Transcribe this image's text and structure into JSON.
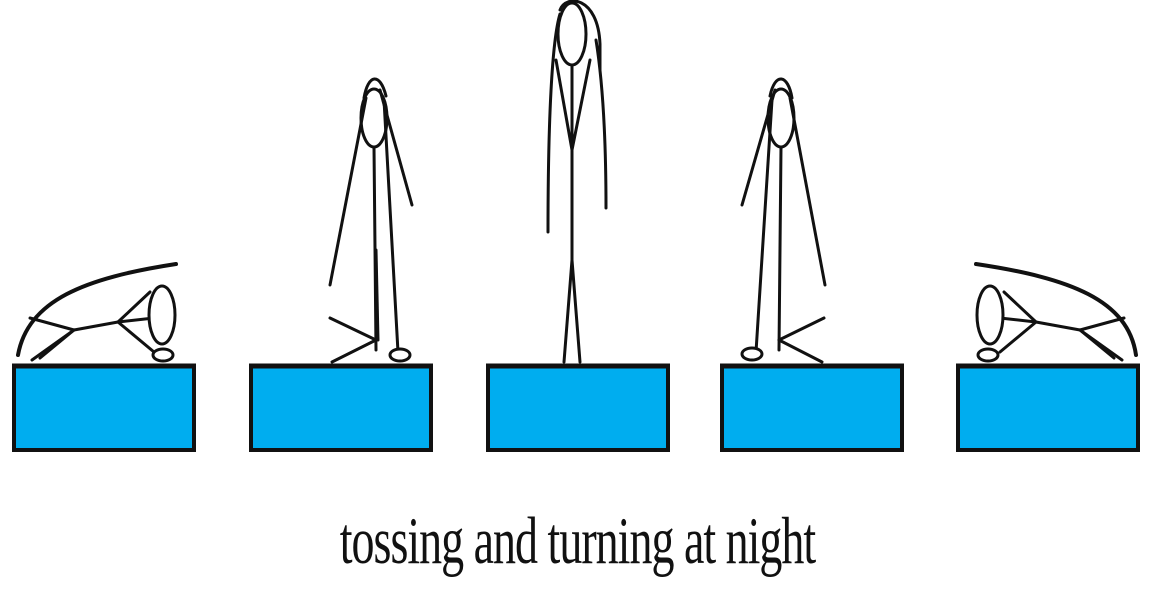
{
  "caption": "tossing and turning at night",
  "colors": {
    "bed_fill": "#00adef",
    "outline": "#111111",
    "background": "#ffffff"
  },
  "panels": [
    {
      "bed": "bed-1",
      "figure": "lying-on-side-facing-right"
    },
    {
      "bed": "bed-2",
      "figure": "sitting-up-facing-right"
    },
    {
      "bed": "bed-3",
      "figure": "standing"
    },
    {
      "bed": "bed-4",
      "figure": "sitting-up-facing-left"
    },
    {
      "bed": "bed-5",
      "figure": "lying-on-side-facing-left"
    }
  ]
}
